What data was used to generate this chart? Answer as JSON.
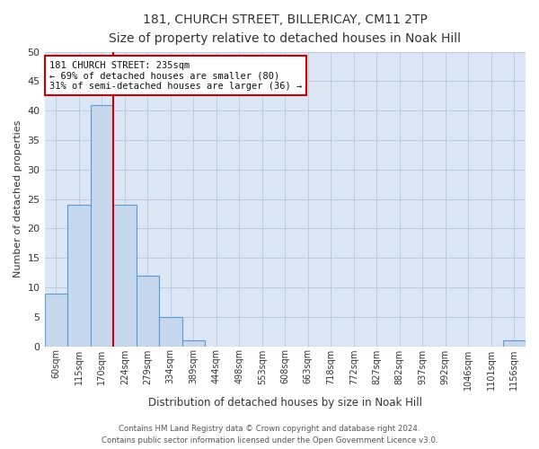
{
  "title1": "181, CHURCH STREET, BILLERICAY, CM11 2TP",
  "title2": "Size of property relative to detached houses in Noak Hill",
  "xlabel": "Distribution of detached houses by size in Noak Hill",
  "ylabel": "Number of detached properties",
  "footer1": "Contains HM Land Registry data © Crown copyright and database right 2024.",
  "footer2": "Contains public sector information licensed under the Open Government Licence v3.0.",
  "bar_labels": [
    "60sqm",
    "115sqm",
    "170sqm",
    "224sqm",
    "279sqm",
    "334sqm",
    "389sqm",
    "444sqm",
    "498sqm",
    "553sqm",
    "608sqm",
    "663sqm",
    "718sqm",
    "772sqm",
    "827sqm",
    "882sqm",
    "937sqm",
    "992sqm",
    "1046sqm",
    "1101sqm",
    "1156sqm"
  ],
  "bar_values": [
    9,
    24,
    41,
    24,
    12,
    5,
    1,
    0,
    0,
    0,
    0,
    0,
    0,
    0,
    0,
    0,
    0,
    0,
    0,
    0,
    1
  ],
  "bar_color": "#c5d8ed",
  "bar_edge_color": "#5b9bd5",
  "property_line_x": 2.5,
  "annotation_text1": "181 CHURCH STREET: 235sqm",
  "annotation_text2": "← 69% of detached houses are smaller (80)",
  "annotation_text3": "31% of semi-detached houses are larger (36) →",
  "annotation_box_color": "#ffffff",
  "annotation_box_edge": "#cc0000",
  "red_line_color": "#cc0000",
  "ylim": [
    0,
    50
  ],
  "yticks": [
    0,
    5,
    10,
    15,
    20,
    25,
    30,
    35,
    40,
    45,
    50
  ],
  "bg_color": "#dce6f5",
  "plot_bg_color": "#ffffff",
  "grid_color": "#b8c8dc"
}
